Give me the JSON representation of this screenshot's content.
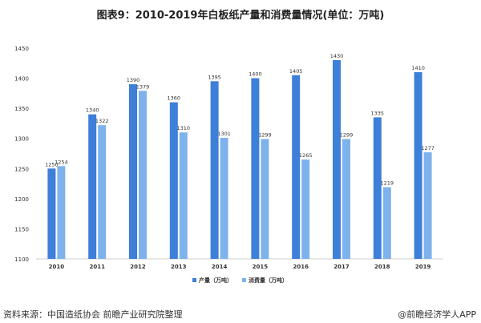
{
  "title": "图表9：2010-2019年白板纸产量和消费量情况(单位：万吨)",
  "source": "资料来源：中国造纸协会 前瞻产业研究院整理",
  "brand": "@前瞻经济学人APP",
  "chart_data": {
    "type": "bar",
    "categories": [
      "2010",
      "2011",
      "2012",
      "2013",
      "2014",
      "2015",
      "2016",
      "2017",
      "2018",
      "2019"
    ],
    "series": [
      {
        "name": "产量（万吨）",
        "color": "#3d7fd9",
        "values": [
          1250,
          1340,
          1390,
          1360,
          1395,
          1400,
          1405,
          1430,
          1335,
          1410
        ]
      },
      {
        "name": "消费量（万吨）",
        "color": "#7eb2ec",
        "values": [
          1254,
          1322,
          1379,
          1310,
          1301,
          1299,
          1265,
          1299,
          1219,
          1277
        ]
      }
    ],
    "ylim": [
      1100,
      1450
    ],
    "yticks": [
      1100,
      1150,
      1200,
      1250,
      1300,
      1350,
      1400,
      1450
    ],
    "grid": false,
    "legend": "bottom"
  }
}
